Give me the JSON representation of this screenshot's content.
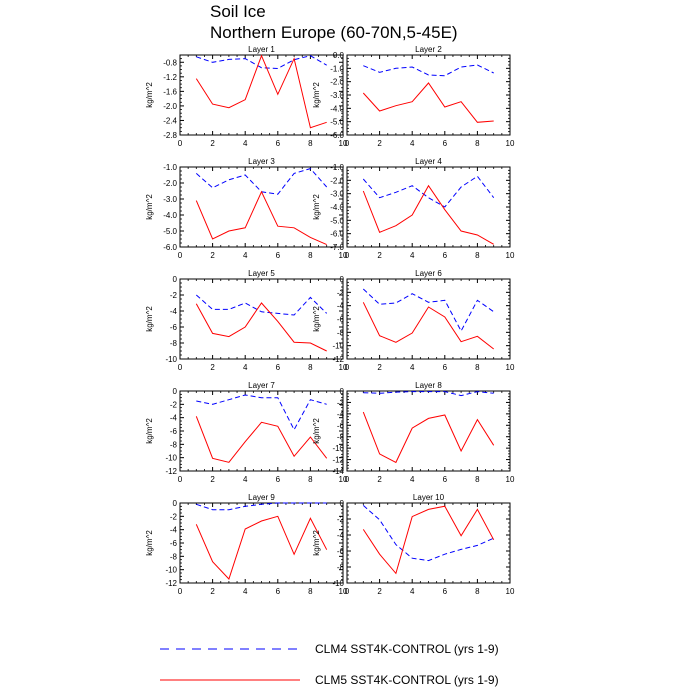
{
  "figure_title": [
    "Soil Ice",
    "Northern Europe (60-70N,5-45E)"
  ],
  "chart_data": [
    {
      "type": "line",
      "title": "Layer 1",
      "ylabel": "kg/m^2",
      "xlim": [
        0,
        10
      ],
      "xticks": [
        0,
        2,
        4,
        6,
        8,
        10
      ],
      "ylim": [
        -2.8,
        -0.6
      ],
      "yticks": [
        -2.8,
        -2.4,
        -2.0,
        -1.6,
        -1.2,
        -0.8
      ],
      "ytick_labels": [
        "-2.8",
        "-2.4",
        "-2.0",
        "-1.6",
        "-1.2",
        "-0.8"
      ],
      "x": [
        1,
        2,
        3,
        4,
        5,
        6,
        7,
        8,
        9
      ],
      "series": [
        {
          "name": "CLM4 SST4K-CONTROL (yrs 1-9)",
          "values": [
            -0.65,
            -0.8,
            -0.72,
            -0.7,
            -0.95,
            -0.97,
            -0.73,
            -0.62,
            -0.88
          ]
        },
        {
          "name": "CLM5 SST4K-CONTROL (yrs 1-9)",
          "values": [
            -1.25,
            -1.95,
            -2.05,
            -1.83,
            -0.62,
            -1.68,
            -0.7,
            -2.6,
            -2.45
          ]
        }
      ]
    },
    {
      "type": "line",
      "title": "Layer 2",
      "ylabel": "kg/m^2",
      "xlim": [
        0,
        10
      ],
      "xticks": [
        0,
        2,
        4,
        6,
        8,
        10
      ],
      "ylim": [
        -6.0,
        0.0
      ],
      "yticks": [
        -6,
        -5,
        -4,
        -3,
        -2,
        -1,
        0
      ],
      "ytick_labels": [
        "-6.0",
        "-5.0",
        "-4.0",
        "-3.0",
        "-2.0",
        "-1.0",
        "0.0"
      ],
      "x": [
        1,
        2,
        3,
        4,
        5,
        6,
        7,
        8,
        9
      ],
      "series": [
        {
          "name": "CLM4 SST4K-CONTROL (yrs 1-9)",
          "values": [
            -0.8,
            -1.3,
            -1.0,
            -0.9,
            -1.5,
            -1.55,
            -0.9,
            -0.75,
            -1.35
          ]
        },
        {
          "name": "CLM5 SST4K-CONTROL (yrs 1-9)",
          "values": [
            -2.85,
            -4.2,
            -3.8,
            -3.5,
            -2.1,
            -3.9,
            -3.5,
            -5.05,
            -4.95
          ]
        }
      ]
    },
    {
      "type": "line",
      "title": "Layer 3",
      "ylabel": "kg/m^2",
      "xlim": [
        0,
        10
      ],
      "xticks": [
        0,
        2,
        4,
        6,
        8,
        10
      ],
      "ylim": [
        -6.0,
        -1.0
      ],
      "yticks": [
        -6,
        -5,
        -4,
        -3,
        -2,
        -1
      ],
      "ytick_labels": [
        "-6.0",
        "-5.0",
        "-4.0",
        "-3.0",
        "-2.0",
        "-1.0"
      ],
      "x": [
        1,
        2,
        3,
        4,
        5,
        6,
        7,
        8,
        9
      ],
      "series": [
        {
          "name": "CLM4 SST4K-CONTROL (yrs 1-9)",
          "values": [
            -1.4,
            -2.3,
            -1.8,
            -1.5,
            -2.55,
            -2.7,
            -1.4,
            -1.1,
            -2.25
          ]
        },
        {
          "name": "CLM5 SST4K-CONTROL (yrs 1-9)",
          "values": [
            -3.1,
            -5.5,
            -5.0,
            -4.8,
            -2.55,
            -4.7,
            -4.8,
            -5.4,
            -5.85
          ]
        }
      ]
    },
    {
      "type": "line",
      "title": "Layer 4",
      "ylabel": "kg/m^2",
      "xlim": [
        0,
        10
      ],
      "xticks": [
        0,
        2,
        4,
        6,
        8,
        10
      ],
      "ylim": [
        -7.0,
        -1.0
      ],
      "yticks": [
        -7,
        -6,
        -5,
        -4,
        -3,
        -2,
        -1
      ],
      "ytick_labels": [
        "-7.0",
        "-6.0",
        "-5.0",
        "-4.0",
        "-3.0",
        "-2.0",
        "-1.0"
      ],
      "x": [
        1,
        2,
        3,
        4,
        5,
        6,
        7,
        8,
        9
      ],
      "series": [
        {
          "name": "CLM4 SST4K-CONTROL (yrs 1-9)",
          "values": [
            -1.9,
            -3.3,
            -2.9,
            -2.4,
            -3.3,
            -4.0,
            -2.5,
            -1.7,
            -3.3
          ]
        },
        {
          "name": "CLM5 SST4K-CONTROL (yrs 1-9)",
          "values": [
            -2.8,
            -5.9,
            -5.4,
            -4.6,
            -2.4,
            -4.2,
            -5.8,
            -6.1,
            -6.8
          ]
        }
      ]
    },
    {
      "type": "line",
      "title": "Layer 5",
      "ylabel": "kg/m^2",
      "xlim": [
        0,
        10
      ],
      "xticks": [
        0,
        2,
        4,
        6,
        8,
        10
      ],
      "ylim": [
        -10,
        0
      ],
      "yticks": [
        -10,
        -8,
        -6,
        -4,
        -2,
        0
      ],
      "ytick_labels": [
        "-10",
        "-8",
        "-6",
        "-4",
        "-2",
        "0"
      ],
      "x": [
        1,
        2,
        3,
        4,
        5,
        6,
        7,
        8,
        9
      ],
      "series": [
        {
          "name": "CLM4 SST4K-CONTROL (yrs 1-9)",
          "values": [
            -2.0,
            -3.8,
            -3.8,
            -3.0,
            -4.1,
            -4.3,
            -4.5,
            -2.3,
            -4.3
          ]
        },
        {
          "name": "CLM5 SST4K-CONTROL (yrs 1-9)",
          "values": [
            -3.1,
            -6.8,
            -7.2,
            -6.0,
            -3.0,
            -5.3,
            -7.9,
            -8.0,
            -9.0
          ]
        }
      ]
    },
    {
      "type": "line",
      "title": "Layer 6",
      "ylabel": "kg/m^2",
      "xlim": [
        0,
        10
      ],
      "xticks": [
        0,
        2,
        4,
        6,
        8,
        10
      ],
      "ylim": [
        -12,
        0
      ],
      "yticks": [
        -12,
        -10,
        -8,
        -6,
        -4,
        -2,
        0
      ],
      "ytick_labels": [
        "-12",
        "-10",
        "-8",
        "-6",
        "-4",
        "-2",
        "0"
      ],
      "x": [
        1,
        2,
        3,
        4,
        5,
        6,
        7,
        8,
        9
      ],
      "series": [
        {
          "name": "CLM4 SST4K-CONTROL (yrs 1-9)",
          "values": [
            -1.5,
            -3.8,
            -3.6,
            -2.2,
            -3.5,
            -3.2,
            -7.8,
            -3.2,
            -4.9
          ]
        },
        {
          "name": "CLM5 SST4K-CONTROL (yrs 1-9)",
          "values": [
            -3.5,
            -8.5,
            -9.5,
            -8.1,
            -4.2,
            -5.7,
            -9.4,
            -8.6,
            -10.5
          ]
        }
      ]
    },
    {
      "type": "line",
      "title": "Layer 7",
      "ylabel": "kg/m^2",
      "xlim": [
        0,
        10
      ],
      "xticks": [
        0,
        2,
        4,
        6,
        8,
        10
      ],
      "ylim": [
        -12,
        0
      ],
      "yticks": [
        -12,
        -10,
        -8,
        -6,
        -4,
        -2,
        0
      ],
      "ytick_labels": [
        "-12",
        "-10",
        "-8",
        "-6",
        "-4",
        "-2",
        "0"
      ],
      "x": [
        1,
        2,
        3,
        4,
        5,
        6,
        7,
        8,
        9
      ],
      "series": [
        {
          "name": "CLM4 SST4K-CONTROL (yrs 1-9)",
          "values": [
            -1.5,
            -2.0,
            -1.3,
            -0.6,
            -1.0,
            -1.0,
            -5.8,
            -1.3,
            -2.0
          ]
        },
        {
          "name": "CLM5 SST4K-CONTROL (yrs 1-9)",
          "values": [
            -3.8,
            -10.1,
            -10.7,
            -7.6,
            -4.7,
            -5.3,
            -9.8,
            -6.9,
            -10.1
          ]
        }
      ]
    },
    {
      "type": "line",
      "title": "Layer 8",
      "ylabel": "kg/m^2",
      "xlim": [
        0,
        10
      ],
      "xticks": [
        0,
        2,
        4,
        6,
        8,
        10
      ],
      "ylim": [
        -14,
        0
      ],
      "yticks": [
        -14,
        -12,
        -10,
        -8,
        -6,
        -4,
        -2,
        0
      ],
      "ytick_labels": [
        "-14",
        "-12",
        "-10",
        "-8",
        "-6",
        "-4",
        "-2",
        "0"
      ],
      "x": [
        1,
        2,
        3,
        4,
        5,
        6,
        7,
        8,
        9
      ],
      "series": [
        {
          "name": "CLM4 SST4K-CONTROL (yrs 1-9)",
          "values": [
            -0.3,
            -0.4,
            -0.2,
            -0.1,
            -0.1,
            -0.1,
            -0.8,
            -0.1,
            -0.4
          ]
        },
        {
          "name": "CLM5 SST4K-CONTROL (yrs 1-9)",
          "values": [
            -3.7,
            -11.0,
            -12.5,
            -6.5,
            -4.8,
            -4.2,
            -10.5,
            -5.0,
            -9.5
          ]
        }
      ]
    },
    {
      "type": "line",
      "title": "Layer 9",
      "ylabel": "kg/m^2",
      "xlim": [
        0,
        10
      ],
      "xticks": [
        0,
        2,
        4,
        6,
        8,
        10
      ],
      "ylim": [
        -12,
        0
      ],
      "yticks": [
        -12,
        -10,
        -8,
        -6,
        -4,
        -2,
        0
      ],
      "ytick_labels": [
        "-12",
        "-10",
        "-8",
        "-6",
        "-4",
        "-2",
        "0"
      ],
      "x": [
        1,
        2,
        3,
        4,
        5,
        6,
        7,
        8,
        9
      ],
      "series": [
        {
          "name": "CLM4 SST4K-CONTROL (yrs 1-9)",
          "values": [
            -0.2,
            -1.0,
            -1.0,
            -0.5,
            -0.2,
            0.0,
            0.0,
            0.0,
            0.0
          ]
        },
        {
          "name": "CLM5 SST4K-CONTROL (yrs 1-9)",
          "values": [
            -3.2,
            -8.8,
            -11.4,
            -3.9,
            -2.7,
            -2.0,
            -7.7,
            -2.3,
            -7.0
          ]
        }
      ]
    },
    {
      "type": "line",
      "title": "Layer 10",
      "ylabel": "kg/m^2",
      "xlim": [
        0,
        10
      ],
      "xticks": [
        0,
        2,
        4,
        6,
        8,
        10
      ],
      "ylim": [
        -10,
        0
      ],
      "yticks": [
        -10,
        -8,
        -6,
        -4,
        -2,
        0
      ],
      "ytick_labels": [
        "-10",
        "-8",
        "-6",
        "-4",
        "-2",
        "0"
      ],
      "x": [
        1,
        2,
        3,
        4,
        5,
        6,
        7,
        8,
        9
      ],
      "series": [
        {
          "name": "CLM4 SST4K-CONTROL (yrs 1-9)",
          "values": [
            -0.3,
            -2.1,
            -5.2,
            -6.9,
            -7.2,
            -6.4,
            -5.8,
            -5.3,
            -4.4
          ]
        },
        {
          "name": "CLM5 SST4K-CONTROL (yrs 1-9)",
          "values": [
            -3.3,
            -6.4,
            -8.8,
            -1.7,
            -0.8,
            -0.4,
            -4.1,
            -0.8,
            -4.6
          ]
        }
      ]
    }
  ],
  "legend": [
    {
      "label": "CLM4 SST4K-CONTROL (yrs 1-9)",
      "color": "#0000ff",
      "dash": "dashed"
    },
    {
      "label": "CLM5 SST4K-CONTROL (yrs 1-9)",
      "color": "#ff0000",
      "dash": "solid"
    }
  ],
  "colors": {
    "clm4": "#0000ff",
    "clm5": "#ff0000",
    "axis": "#000000"
  }
}
